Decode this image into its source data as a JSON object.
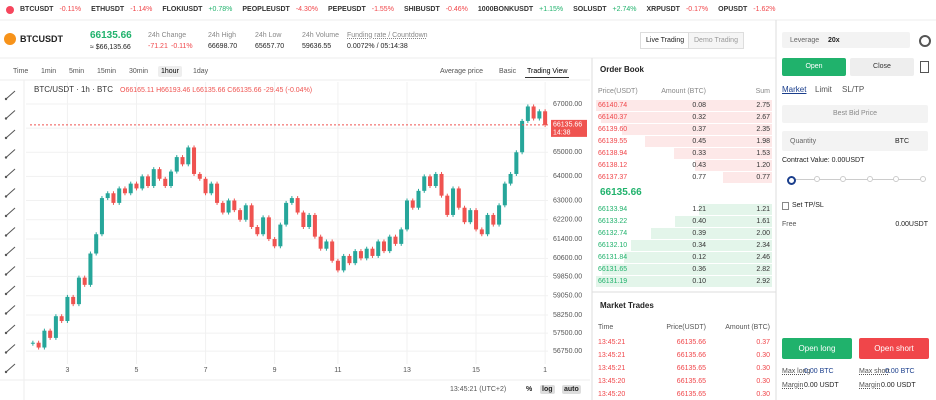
{
  "ticker_bar": [
    {
      "symbol": "BTCUSDT",
      "change": "-0.11%"
    },
    {
      "symbol": "ETHUSDT",
      "change": "-1.14%"
    },
    {
      "symbol": "FLOKIUSDT",
      "change": "+0.78%"
    },
    {
      "symbol": "PEOPLEUSDT",
      "change": "-4.30%"
    },
    {
      "symbol": "PEPEUSDT",
      "change": "-1.55%"
    },
    {
      "symbol": "SHIBUSDT",
      "change": "-0.46%"
    },
    {
      "symbol": "1000BONKUSDT",
      "change": "+1.15%"
    },
    {
      "symbol": "SOLUSDT",
      "change": "+2.74%"
    },
    {
      "symbol": "XRPUSDT",
      "change": "-0.17%"
    },
    {
      "symbol": "OPUSDT",
      "change": "-1.62%"
    }
  ],
  "header": {
    "symbol": "BTCUSDT",
    "price": "66135.66",
    "price_usd": "≈ $66,135.66",
    "stats": [
      {
        "label": "24h Change",
        "value": "-71.21",
        "value2": "-0.11%"
      },
      {
        "label": "24h High",
        "value": "66698.70"
      },
      {
        "label": "24h Low",
        "value": "65657.70"
      },
      {
        "label": "24h Volume",
        "value": "59636.55"
      },
      {
        "label": "Funding rate / Countdown",
        "value": "0.0072% / 05:14:38"
      }
    ],
    "modes": [
      "Live Trading",
      "Demo Trading"
    ]
  },
  "toolbar": {
    "intervals": [
      "Time",
      "1min",
      "5min",
      "15min",
      "30min",
      "1hour",
      "1day"
    ],
    "active_interval": 5,
    "views": [
      "Average price",
      "Basic",
      "Trading View"
    ],
    "active_view": 2
  },
  "chart_data": {
    "type": "candlestick",
    "title": "BTC/USDT · 1h · BTC",
    "ohlc_label": "O66165.11 H66193.46 L66135.66 C66135.66 -29.45 (-0.04%)",
    "closes": [
      57100,
      56900,
      57600,
      57300,
      58200,
      58000,
      59000,
      58700,
      59800,
      59500,
      60800,
      61600,
      63100,
      63300,
      62900,
      63500,
      63300,
      63700,
      63500,
      64000,
      63600,
      64300,
      63900,
      63600,
      64200,
      64800,
      64500,
      65200,
      64100,
      63900,
      63300,
      63700,
      62900,
      62500,
      63000,
      62600,
      62200,
      62800,
      61900,
      61600,
      62300,
      61400,
      61100,
      62000,
      62900,
      63100,
      62500,
      61900,
      62400,
      61500,
      61000,
      61300,
      60500,
      60100,
      60700,
      60400,
      60900,
      60600,
      61000,
      60700,
      61300,
      60900,
      61500,
      61200,
      61800,
      63000,
      62700,
      63400,
      64000,
      63600,
      64100,
      63200,
      62400,
      63500,
      62700,
      62100,
      62600,
      61800,
      61600,
      62400,
      62000,
      62800,
      63700,
      64100,
      65000,
      66300,
      66900,
      66400,
      66700,
      66135.66
    ],
    "last_price": 66135.66,
    "countdown": "14:38",
    "ylim": [
      56300,
      67500
    ],
    "yticks": [
      {
        "value": 67000,
        "label": "67000.00"
      },
      {
        "value": 66000,
        "label": "66000.00"
      },
      {
        "value": 65000,
        "label": "65000.00"
      },
      {
        "value": 64000,
        "label": "64000.00"
      },
      {
        "value": 63000,
        "label": "63000.00"
      },
      {
        "value": 62200,
        "label": "62200.00"
      },
      {
        "value": 61400,
        "label": "61400.00"
      },
      {
        "value": 60600,
        "label": "60600.00"
      },
      {
        "value": 59850,
        "label": "59850.00"
      },
      {
        "value": 59050,
        "label": "59050.00"
      },
      {
        "value": 58250,
        "label": "58250.00"
      },
      {
        "value": 57500,
        "label": "57500.00"
      },
      {
        "value": 56750,
        "label": "56750.00"
      }
    ],
    "xticks": [
      {
        "value": 6,
        "label": "3"
      },
      {
        "value": 18,
        "label": "5"
      },
      {
        "value": 30,
        "label": "7"
      },
      {
        "value": 42,
        "label": "9"
      },
      {
        "value": 53,
        "label": "11"
      },
      {
        "value": 65,
        "label": "13"
      },
      {
        "value": 77,
        "label": "15"
      },
      {
        "value": 89,
        "label": "1"
      }
    ],
    "grid": true,
    "up_color": "#26a69a",
    "down_color": "#ef5350"
  },
  "footer": {
    "time": "13:45:21 (UTC+2)",
    "buttons": [
      "%",
      "log",
      "auto"
    ]
  },
  "order_book": {
    "title": "Order Book",
    "columns": [
      "Price(USDT)",
      "Amount (BTC)",
      "Sum"
    ],
    "asks": [
      [
        "66140.74",
        "0.08",
        "2.75"
      ],
      [
        "66140.37",
        "0.32",
        "2.67"
      ],
      [
        "66139.60",
        "0.37",
        "2.35"
      ],
      [
        "66139.55",
        "0.45",
        "1.98"
      ],
      [
        "66138.94",
        "0.33",
        "1.53"
      ],
      [
        "66138.12",
        "0.43",
        "1.20"
      ],
      [
        "66137.37",
        "0.77",
        "0.77"
      ]
    ],
    "mid_price": "66135.66",
    "bids": [
      [
        "66133.94",
        "1.21",
        "1.21"
      ],
      [
        "66133.22",
        "0.40",
        "1.61"
      ],
      [
        "66132.74",
        "0.39",
        "2.00"
      ],
      [
        "66132.10",
        "0.34",
        "2.34"
      ],
      [
        "66131.84",
        "0.12",
        "2.46"
      ],
      [
        "66131.65",
        "0.36",
        "2.82"
      ],
      [
        "66131.19",
        "0.10",
        "2.92"
      ]
    ]
  },
  "market_trades": {
    "title": "Market Trades",
    "columns": [
      "Time",
      "Price(USDT)",
      "Amount (BTC)"
    ],
    "rows": [
      [
        "13:45:21",
        "66135.66",
        "0.37"
      ],
      [
        "13:45:21",
        "66135.66",
        "0.30"
      ],
      [
        "13:45:21",
        "66135.65",
        "0.30"
      ],
      [
        "13:45:20",
        "66135.65",
        "0.30"
      ],
      [
        "13:45:20",
        "66135.65",
        "0.30"
      ]
    ]
  },
  "order_form": {
    "leverage_label": "Leverage",
    "leverage": "20x",
    "tabs": [
      "Open",
      "Close"
    ],
    "order_types": [
      "Market",
      "Limit",
      "SL/TP"
    ],
    "price_placeholder": "Best Bid Price",
    "quantity_label": "Quantity",
    "quantity_unit": "BTC",
    "contract_value": "Contract Value: 0.00USDT",
    "tpsl": "Set TP/SL",
    "free_label": "Free",
    "free_value": "0.00USDT",
    "buttons": [
      "Open long",
      "Open short"
    ],
    "limits": [
      [
        "Max long",
        "0.00 BTC"
      ],
      [
        "Max short",
        "0.00 BTC"
      ],
      [
        "Margin",
        "0.00 USDT"
      ],
      [
        "Margin",
        "0.00 USDT"
      ]
    ]
  }
}
